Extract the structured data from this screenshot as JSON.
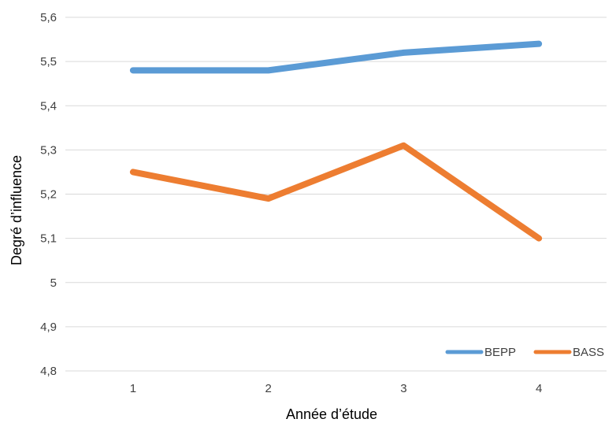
{
  "chart_data": {
    "type": "line",
    "title": "",
    "xlabel": "Année d’étude",
    "ylabel": "Degré d’influence",
    "categories": [
      "1",
      "2",
      "3",
      "4"
    ],
    "ylim": [
      4.8,
      5.6
    ],
    "yticks": [
      "4,8",
      "4,9",
      "5",
      "5,1",
      "5,2",
      "5,3",
      "5,4",
      "5,5",
      "5,6"
    ],
    "grid": true,
    "legend_position": "bottom-right",
    "series": [
      {
        "name": "BEPP",
        "color": "#5b9bd5",
        "values": [
          5.48,
          5.48,
          5.52,
          5.54
        ]
      },
      {
        "name": "BASS",
        "color": "#ed7d31",
        "values": [
          5.25,
          5.19,
          5.31,
          5.1
        ]
      }
    ]
  }
}
